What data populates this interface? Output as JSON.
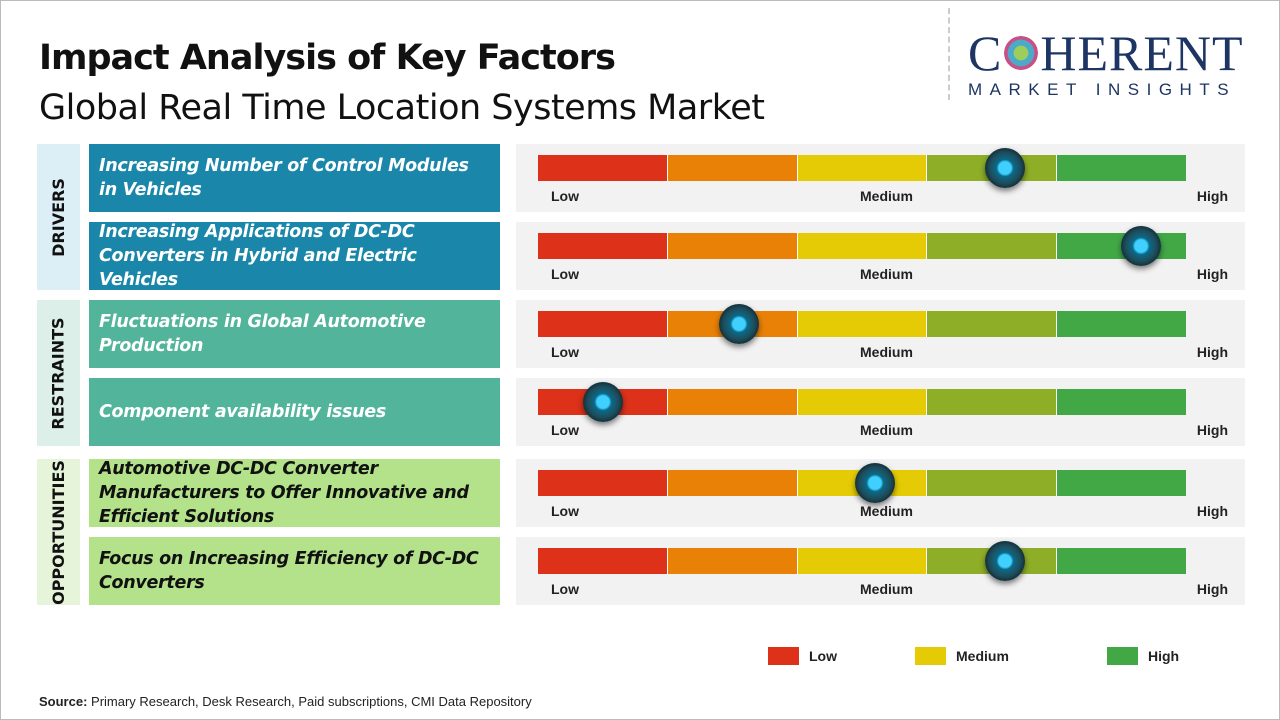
{
  "title": "Impact Analysis of Key Factors",
  "subtitle": "Global Real Time Location Systems Market",
  "logo": {
    "line1": "COHERENT",
    "line2": "MARKET INSIGHTS"
  },
  "colors": {
    "low": "#dd3119",
    "low_medium": "#e88106",
    "medium": "#e5cb05",
    "medium_high": "#8fae27",
    "high": "#42a846",
    "drivers": "#1a87aa",
    "restraints": "#52b49a",
    "opportunities": "#b3e28b"
  },
  "chart_data": {
    "type": "gauge",
    "scale_labels": [
      "Low",
      "Medium",
      "High"
    ],
    "scale": [
      0,
      1
    ],
    "groups": [
      {
        "name": "DRIVERS",
        "factors": [
          {
            "label": "Increasing Number of Control Modules in Vehicles",
            "value": 0.72
          },
          {
            "label": "Increasing Applications of DC-DC Converters in Hybrid and Electric Vehicles",
            "value": 0.93
          }
        ]
      },
      {
        "name": "RESTRAINTS",
        "factors": [
          {
            "label": "Fluctuations in Global Automotive Production",
            "value": 0.31
          },
          {
            "label": "Component availability issues",
            "value": 0.1
          }
        ]
      },
      {
        "name": "OPPORTUNITIES",
        "factors": [
          {
            "label": "Automotive DC-DC Converter Manufacturers to Offer Innovative and Efficient Solutions",
            "value": 0.52
          },
          {
            "label": "Focus on Increasing Efficiency of DC-DC Converters",
            "value": 0.72
          }
        ]
      }
    ],
    "legend": [
      {
        "label": "Low",
        "color": "#dd3119"
      },
      {
        "label": "Medium",
        "color": "#e5cb05"
      },
      {
        "label": "High",
        "color": "#42a846"
      }
    ]
  },
  "source": {
    "label": "Source:",
    "text": " Primary Research, Desk Research, Paid subscriptions, CMI Data Repository"
  }
}
